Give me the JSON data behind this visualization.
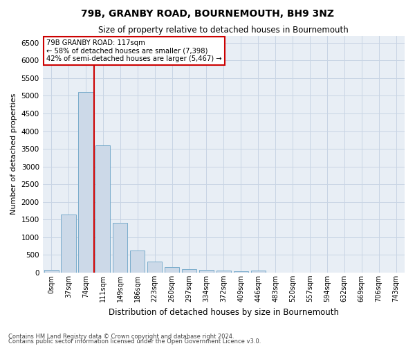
{
  "title": "79B, GRANBY ROAD, BOURNEMOUTH, BH9 3NZ",
  "subtitle": "Size of property relative to detached houses in Bournemouth",
  "xlabel": "Distribution of detached houses by size in Bournemouth",
  "ylabel": "Number of detached properties",
  "footnote1": "Contains HM Land Registry data © Crown copyright and database right 2024.",
  "footnote2": "Contains public sector information licensed under the Open Government Licence v3.0.",
  "bar_labels": [
    "0sqm",
    "37sqm",
    "74sqm",
    "111sqm",
    "149sqm",
    "186sqm",
    "223sqm",
    "260sqm",
    "297sqm",
    "334sqm",
    "372sqm",
    "409sqm",
    "446sqm",
    "483sqm",
    "520sqm",
    "557sqm",
    "594sqm",
    "632sqm",
    "669sqm",
    "706sqm",
    "743sqm"
  ],
  "bar_values": [
    75,
    1650,
    5100,
    3600,
    1400,
    620,
    310,
    155,
    100,
    75,
    60,
    40,
    60,
    5,
    5,
    5,
    5,
    5,
    5,
    5,
    5
  ],
  "bar_color": "#ccd9e8",
  "bar_edgecolor": "#7aaccb",
  "grid_color": "#c8d4e4",
  "background_color": "#e8eef5",
  "red_line_x": 2.5,
  "annotation_text": "79B GRANBY ROAD: 117sqm\n← 58% of detached houses are smaller (7,398)\n42% of semi-detached houses are larger (5,467) →",
  "annotation_box_color": "#ffffff",
  "annotation_border_color": "#cc0000",
  "ylim": [
    0,
    6700
  ],
  "yticks": [
    0,
    500,
    1000,
    1500,
    2000,
    2500,
    3000,
    3500,
    4000,
    4500,
    5000,
    5500,
    6000,
    6500
  ]
}
